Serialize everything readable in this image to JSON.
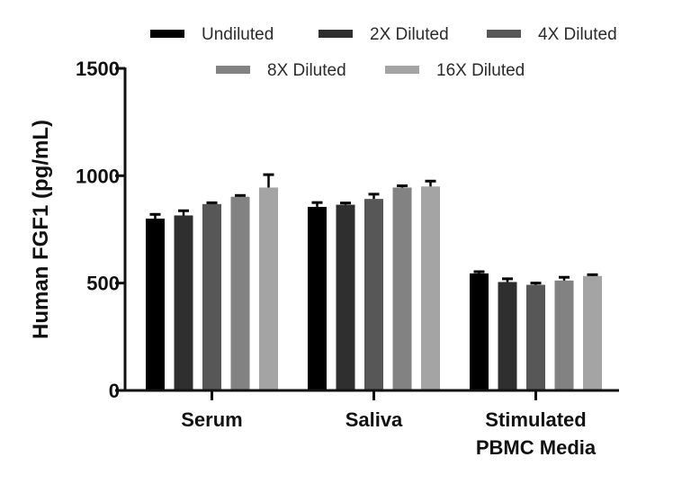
{
  "chart_data": {
    "type": "bar",
    "title": "",
    "xlabel": "",
    "ylabel": "Human FGF1 (pg/mL)",
    "ylim": [
      0,
      1500
    ],
    "yticks": [
      0,
      500,
      1000,
      1500
    ],
    "grid": false,
    "legend_position": "top",
    "categories": [
      {
        "lines": [
          "Serum"
        ]
      },
      {
        "lines": [
          "Saliva"
        ]
      },
      {
        "lines": [
          "Stimulated",
          "PBMC Media"
        ]
      }
    ],
    "series": [
      {
        "name": "Undiluted",
        "color": "#000000",
        "values": [
          800,
          855,
          545
        ],
        "errors": [
          20,
          20,
          8
        ]
      },
      {
        "name": "2X Diluted",
        "color": "#2f2f2f",
        "values": [
          815,
          865,
          505
        ],
        "errors": [
          22,
          8,
          15
        ]
      },
      {
        "name": "4X Diluted",
        "color": "#575757",
        "values": [
          868,
          892,
          492
        ],
        "errors": [
          6,
          22,
          8
        ]
      },
      {
        "name": "8X Diluted",
        "color": "#828282",
        "values": [
          902,
          945,
          512
        ],
        "errors": [
          6,
          8,
          15
        ]
      },
      {
        "name": "16X Diluted",
        "color": "#a4a4a4",
        "values": [
          945,
          950,
          533
        ],
        "errors": [
          60,
          25,
          6
        ]
      }
    ]
  }
}
